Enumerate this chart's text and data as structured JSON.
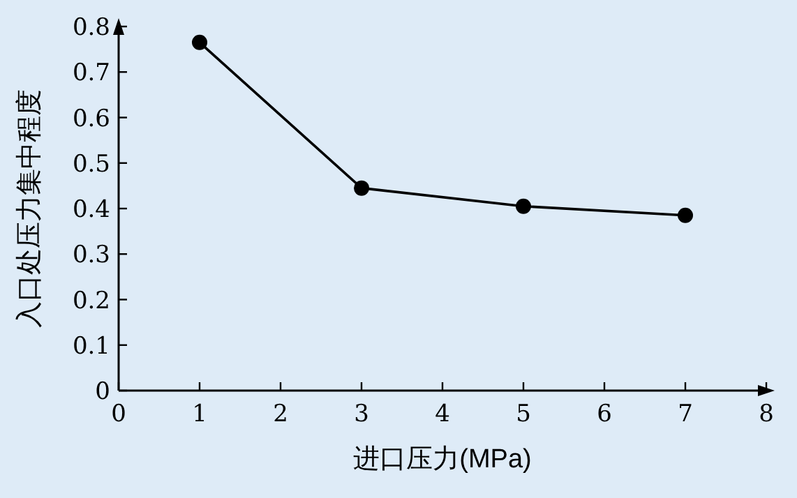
{
  "chart_data": {
    "type": "line",
    "xlabel": "进口压力(MPa)",
    "ylabel": "入口处压力集中程度",
    "x": [
      1,
      3,
      5,
      7
    ],
    "series": [
      {
        "color": "#000000",
        "values": [
          0.765,
          0.445,
          0.405,
          0.385
        ]
      }
    ],
    "xlim": [
      0,
      8
    ],
    "xticks": [
      0,
      1,
      2,
      3,
      4,
      5,
      6,
      7,
      8
    ],
    "ylim": [
      0,
      0.8
    ],
    "yticks": [
      0,
      0.1,
      0.2,
      0.3,
      0.4,
      0.5,
      0.6,
      0.7,
      0.8
    ],
    "marker": "circle",
    "line_style": "solid",
    "grid": false
  }
}
